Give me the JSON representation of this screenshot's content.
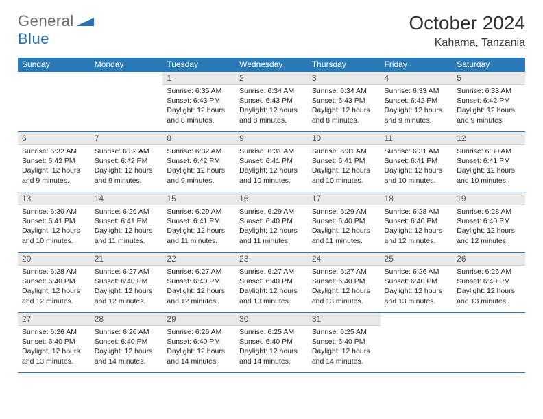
{
  "logo": {
    "part1": "General",
    "part2": "Blue",
    "tri_color": "#2a72b5"
  },
  "title": "October 2024",
  "location": "Kahama, Tanzania",
  "colors": {
    "header_bg": "#2a7ab8",
    "header_fg": "#ffffff",
    "daynum_bg": "#e9e9e9",
    "week_divider": "#2a7ab8",
    "text": "#222222"
  },
  "dow": [
    "Sunday",
    "Monday",
    "Tuesday",
    "Wednesday",
    "Thursday",
    "Friday",
    "Saturday"
  ],
  "label_sunrise": "Sunrise:",
  "label_sunset": "Sunset:",
  "label_daylight_prefix": "Daylight:",
  "weeks": [
    [
      null,
      null,
      {
        "n": "1",
        "sr": "6:35 AM",
        "ss": "6:43 PM",
        "dl": "12 hours and 8 minutes."
      },
      {
        "n": "2",
        "sr": "6:34 AM",
        "ss": "6:43 PM",
        "dl": "12 hours and 8 minutes."
      },
      {
        "n": "3",
        "sr": "6:34 AM",
        "ss": "6:43 PM",
        "dl": "12 hours and 8 minutes."
      },
      {
        "n": "4",
        "sr": "6:33 AM",
        "ss": "6:42 PM",
        "dl": "12 hours and 9 minutes."
      },
      {
        "n": "5",
        "sr": "6:33 AM",
        "ss": "6:42 PM",
        "dl": "12 hours and 9 minutes."
      }
    ],
    [
      {
        "n": "6",
        "sr": "6:32 AM",
        "ss": "6:42 PM",
        "dl": "12 hours and 9 minutes."
      },
      {
        "n": "7",
        "sr": "6:32 AM",
        "ss": "6:42 PM",
        "dl": "12 hours and 9 minutes."
      },
      {
        "n": "8",
        "sr": "6:32 AM",
        "ss": "6:42 PM",
        "dl": "12 hours and 9 minutes."
      },
      {
        "n": "9",
        "sr": "6:31 AM",
        "ss": "6:41 PM",
        "dl": "12 hours and 10 minutes."
      },
      {
        "n": "10",
        "sr": "6:31 AM",
        "ss": "6:41 PM",
        "dl": "12 hours and 10 minutes."
      },
      {
        "n": "11",
        "sr": "6:31 AM",
        "ss": "6:41 PM",
        "dl": "12 hours and 10 minutes."
      },
      {
        "n": "12",
        "sr": "6:30 AM",
        "ss": "6:41 PM",
        "dl": "12 hours and 10 minutes."
      }
    ],
    [
      {
        "n": "13",
        "sr": "6:30 AM",
        "ss": "6:41 PM",
        "dl": "12 hours and 10 minutes."
      },
      {
        "n": "14",
        "sr": "6:29 AM",
        "ss": "6:41 PM",
        "dl": "12 hours and 11 minutes."
      },
      {
        "n": "15",
        "sr": "6:29 AM",
        "ss": "6:41 PM",
        "dl": "12 hours and 11 minutes."
      },
      {
        "n": "16",
        "sr": "6:29 AM",
        "ss": "6:40 PM",
        "dl": "12 hours and 11 minutes."
      },
      {
        "n": "17",
        "sr": "6:29 AM",
        "ss": "6:40 PM",
        "dl": "12 hours and 11 minutes."
      },
      {
        "n": "18",
        "sr": "6:28 AM",
        "ss": "6:40 PM",
        "dl": "12 hours and 12 minutes."
      },
      {
        "n": "19",
        "sr": "6:28 AM",
        "ss": "6:40 PM",
        "dl": "12 hours and 12 minutes."
      }
    ],
    [
      {
        "n": "20",
        "sr": "6:28 AM",
        "ss": "6:40 PM",
        "dl": "12 hours and 12 minutes."
      },
      {
        "n": "21",
        "sr": "6:27 AM",
        "ss": "6:40 PM",
        "dl": "12 hours and 12 minutes."
      },
      {
        "n": "22",
        "sr": "6:27 AM",
        "ss": "6:40 PM",
        "dl": "12 hours and 12 minutes."
      },
      {
        "n": "23",
        "sr": "6:27 AM",
        "ss": "6:40 PM",
        "dl": "12 hours and 13 minutes."
      },
      {
        "n": "24",
        "sr": "6:27 AM",
        "ss": "6:40 PM",
        "dl": "12 hours and 13 minutes."
      },
      {
        "n": "25",
        "sr": "6:26 AM",
        "ss": "6:40 PM",
        "dl": "12 hours and 13 minutes."
      },
      {
        "n": "26",
        "sr": "6:26 AM",
        "ss": "6:40 PM",
        "dl": "12 hours and 13 minutes."
      }
    ],
    [
      {
        "n": "27",
        "sr": "6:26 AM",
        "ss": "6:40 PM",
        "dl": "12 hours and 13 minutes."
      },
      {
        "n": "28",
        "sr": "6:26 AM",
        "ss": "6:40 PM",
        "dl": "12 hours and 14 minutes."
      },
      {
        "n": "29",
        "sr": "6:26 AM",
        "ss": "6:40 PM",
        "dl": "12 hours and 14 minutes."
      },
      {
        "n": "30",
        "sr": "6:25 AM",
        "ss": "6:40 PM",
        "dl": "12 hours and 14 minutes."
      },
      {
        "n": "31",
        "sr": "6:25 AM",
        "ss": "6:40 PM",
        "dl": "12 hours and 14 minutes."
      },
      null,
      null
    ]
  ]
}
